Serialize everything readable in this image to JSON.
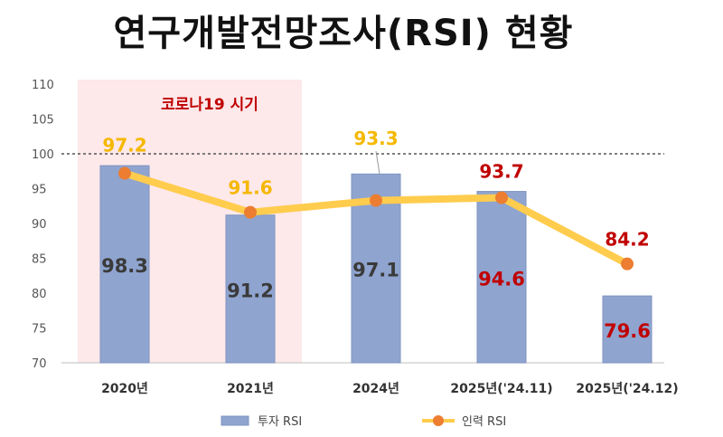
{
  "chart_data": {
    "type": "bar",
    "title": "연구개발전망조사(RSI) 현황",
    "categories": [
      "2020년",
      "2021년",
      "2024년",
      "2025년('24.11)",
      "2025년('24.12)"
    ],
    "series": [
      {
        "name": "투자 RSI",
        "kind": "bar",
        "values": [
          98.3,
          91.2,
          97.1,
          94.6,
          79.6
        ],
        "color": "#8fa4cf"
      },
      {
        "name": "인력 RSI",
        "kind": "line",
        "values": [
          97.2,
          91.6,
          93.3,
          93.7,
          84.2
        ],
        "color": "#ffcc4d",
        "marker_color": "#ed7d31"
      }
    ],
    "bar_label_colors": [
      "#3a3a3a",
      "#3a3a3a",
      "#3a3a3a",
      "#c00000",
      "#c00000"
    ],
    "line_label_colors": [
      "#f5b800",
      "#f5b800",
      "#f5b800",
      "#c00000",
      "#c00000"
    ],
    "ylim": [
      70,
      110
    ],
    "yticks": [
      70,
      75,
      80,
      85,
      90,
      95,
      100,
      105,
      110
    ],
    "reference_line": 100,
    "shaded_region": {
      "label": "코로나19 시기",
      "from": "2020년",
      "to": "2021년",
      "color": "#fde8ea",
      "label_color": "#c00000"
    },
    "legend": {
      "position": "bottom"
    }
  }
}
